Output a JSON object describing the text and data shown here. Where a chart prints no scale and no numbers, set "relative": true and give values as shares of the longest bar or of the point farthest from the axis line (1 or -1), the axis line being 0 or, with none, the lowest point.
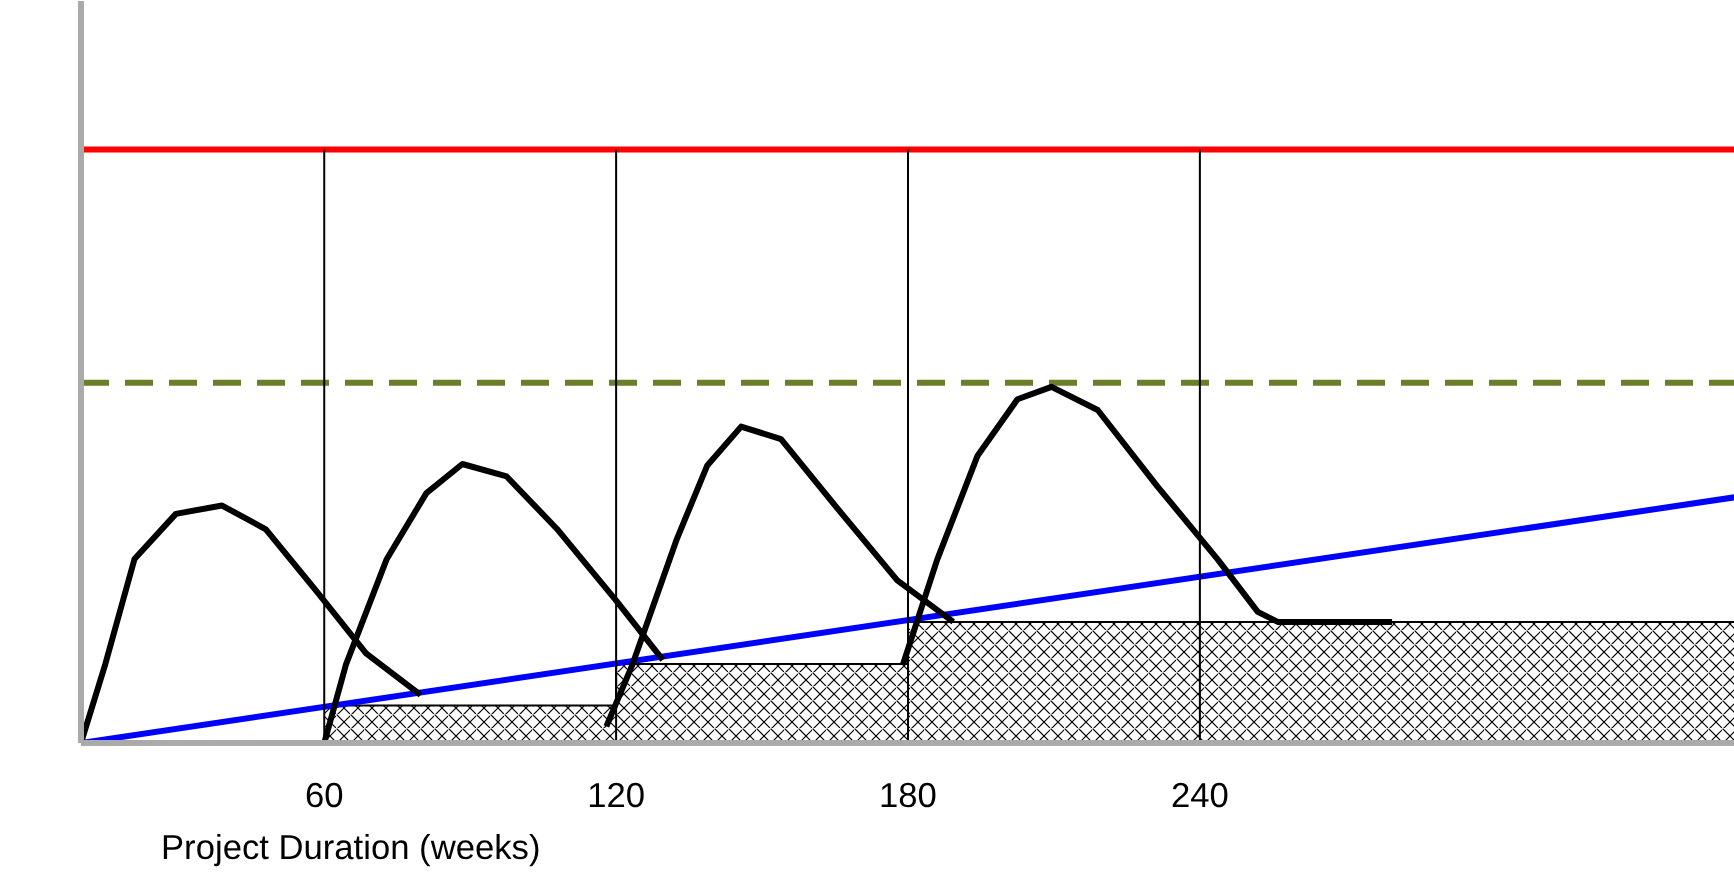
{
  "chart_data": {
    "type": "line",
    "relative": true,
    "xlabel": "Project Duration (weeks)",
    "xlim": [
      10,
      350
    ],
    "xticks": [
      60,
      120,
      180,
      240
    ],
    "grid": false,
    "series": [
      {
        "type": "area",
        "color": "#000000",
        "x": [
          60,
          120,
          120,
          180,
          180,
          350
        ],
        "values": [
          0.063,
          0.063,
          0.133,
          0.133,
          0.204,
          0.204
        ]
      },
      {
        "color": "#ff0000",
        "x": [
          10,
          350
        ],
        "values": [
          1,
          1
        ]
      },
      {
        "color": "#6b7f2a",
        "line_style": "dashed",
        "x": [
          10,
          350
        ],
        "values": [
          0.607,
          0.607
        ]
      },
      {
        "color": "#0000ff",
        "x": [
          10,
          350
        ],
        "values": [
          0,
          0.414
        ]
      },
      {
        "color": "#000000",
        "x": [
          10,
          15,
          21,
          29.5,
          39,
          48,
          58.4,
          68.6,
          79.8
        ],
        "values": [
          0,
          0.133,
          0.31,
          0.386,
          0.4,
          0.36,
          0.256,
          0.151,
          0.081
        ]
      },
      {
        "color": "#000000",
        "x": [
          60,
          64.5,
          72.8,
          81,
          88.4,
          97.5,
          107.8,
          120.1,
          129.6
        ],
        "values": [
          0,
          0.133,
          0.309,
          0.421,
          0.47,
          0.449,
          0.361,
          0.239,
          0.14
        ]
      },
      {
        "color": "#000000",
        "x": [
          118,
          123.4,
          132.5,
          138.7,
          145.7,
          153.9,
          165.4,
          177.8,
          189.3
        ],
        "values": [
          0.028,
          0.133,
          0.344,
          0.467,
          0.533,
          0.512,
          0.396,
          0.274,
          0.204
        ]
      },
      {
        "color": "#000000",
        "x": [
          179,
          186,
          194.3,
          202.5,
          209.5,
          219,
          231.3,
          243.7,
          251.9,
          256,
          279.5
        ],
        "values": [
          0.133,
          0.309,
          0.484,
          0.579,
          0.6,
          0.561,
          0.432,
          0.309,
          0.221,
          0.204,
          0.204
        ]
      }
    ],
    "ref_lines": [
      {
        "axis": "x",
        "value": 60,
        "color": "#000000"
      },
      {
        "axis": "x",
        "value": 120,
        "color": "#000000"
      },
      {
        "axis": "x",
        "value": 180,
        "color": "#000000"
      },
      {
        "axis": "x",
        "value": 240,
        "color": "#000000"
      }
    ]
  }
}
